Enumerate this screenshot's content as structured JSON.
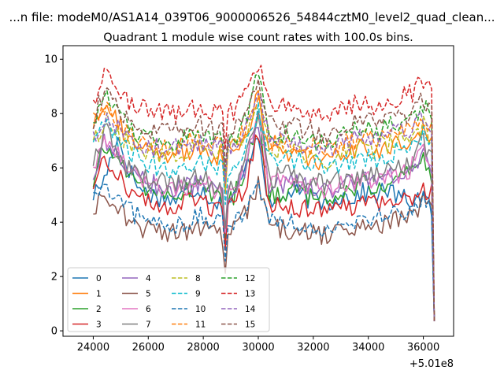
{
  "suptitle": "...n file: modeM0/AS1A14_039T06_9000006526_54844cztM0_level2_quad_clean...",
  "chart_data": {
    "type": "line",
    "title": "Quadrant 1 module wise count rates with 100.0s bins.",
    "xlabel": "",
    "ylabel": "",
    "x_offset_label": "+5.01e8",
    "xlim": [
      22900,
      37100
    ],
    "ylim": [
      -0.2,
      10.5
    ],
    "x_ticks": [
      24000,
      26000,
      28000,
      30000,
      32000,
      34000,
      36000
    ],
    "y_ticks": [
      0,
      2,
      4,
      6,
      8,
      10
    ],
    "x_ticks_labels": [
      "24000",
      "26000",
      "28000",
      "30000",
      "32000",
      "34000",
      "36000"
    ],
    "y_ticks_labels": [
      "0",
      "2",
      "4",
      "6",
      "8",
      "10"
    ],
    "grid": false,
    "legend_position": "lower-left",
    "legend_columns": 4,
    "series": [
      {
        "name": "0",
        "color": "#1f77b4",
        "dash": "solid",
        "values": [
          5.0,
          5.6,
          7.2,
          6.0,
          5.2,
          5.0,
          4.9,
          4.8,
          5.1,
          5.3,
          4.9,
          4.6,
          4.9,
          6.0,
          7.4,
          4.5,
          4.9,
          5.1,
          4.9,
          4.8,
          4.7,
          5.0,
          4.9,
          5.1,
          5.0,
          5.2,
          4.9,
          4.8,
          5.0,
          4.2
        ]
      },
      {
        "name": "1",
        "color": "#ff7f0e",
        "dash": "solid",
        "values": [
          7.6,
          8.6,
          7.8,
          7.0,
          6.7,
          6.5,
          6.4,
          6.6,
          6.5,
          6.7,
          6.4,
          6.5,
          6.7,
          7.3,
          8.6,
          6.6,
          6.6,
          6.5,
          6.4,
          6.3,
          6.2,
          6.5,
          6.6,
          6.7,
          6.6,
          6.8,
          6.9,
          7.0,
          7.4,
          6.8
        ]
      },
      {
        "name": "2",
        "color": "#2ca02c",
        "dash": "solid",
        "values": [
          5.4,
          6.8,
          6.4,
          5.8,
          5.4,
          5.2,
          5.1,
          5.0,
          5.2,
          5.5,
          5.1,
          4.7,
          5.0,
          5.9,
          7.9,
          5.0,
          5.1,
          5.2,
          5.0,
          4.8,
          4.9,
          5.1,
          5.2,
          5.4,
          5.3,
          5.5,
          5.6,
          5.8,
          6.4,
          5.4
        ]
      },
      {
        "name": "3",
        "color": "#d62728",
        "dash": "solid",
        "values": [
          5.3,
          6.4,
          5.9,
          5.2,
          4.9,
          4.7,
          4.6,
          4.5,
          4.7,
          4.9,
          4.6,
          4.4,
          4.6,
          5.4,
          7.2,
          4.6,
          4.7,
          4.6,
          4.5,
          4.4,
          4.3,
          4.5,
          4.6,
          4.7,
          4.6,
          4.8,
          4.7,
          4.9,
          5.2,
          5.2
        ]
      },
      {
        "name": "4",
        "color": "#9467bd",
        "dash": "solid",
        "values": [
          5.6,
          7.0,
          6.5,
          6.0,
          5.6,
          5.4,
          5.3,
          5.2,
          5.3,
          5.5,
          5.2,
          5.0,
          5.2,
          6.1,
          7.8,
          5.3,
          5.4,
          5.5,
          5.3,
          5.2,
          5.1,
          5.3,
          5.4,
          5.6,
          5.5,
          5.7,
          5.8,
          5.9,
          6.5,
          5.8
        ]
      },
      {
        "name": "5",
        "color": "#8c564b",
        "dash": "solid",
        "values": [
          4.3,
          5.2,
          4.6,
          4.1,
          3.8,
          3.7,
          3.6,
          3.6,
          3.7,
          3.9,
          3.6,
          3.5,
          3.7,
          4.4,
          5.4,
          3.8,
          3.8,
          3.7,
          3.6,
          3.5,
          3.5,
          3.7,
          3.8,
          3.9,
          3.8,
          4.0,
          4.1,
          4.2,
          4.8,
          4.3
        ]
      },
      {
        "name": "6",
        "color": "#e377c2",
        "dash": "solid",
        "values": [
          6.0,
          7.2,
          6.7,
          6.1,
          5.6,
          5.4,
          5.3,
          5.2,
          5.3,
          5.6,
          5.3,
          5.0,
          5.2,
          6.2,
          8.0,
          5.4,
          5.5,
          5.6,
          5.4,
          5.3,
          5.2,
          5.4,
          5.5,
          5.6,
          5.5,
          5.7,
          5.8,
          6.0,
          6.6,
          6.1
        ]
      },
      {
        "name": "7",
        "color": "#7f7f7f",
        "dash": "solid",
        "values": [
          6.0,
          7.4,
          6.6,
          6.0,
          5.7,
          5.6,
          5.5,
          5.4,
          5.5,
          5.7,
          5.4,
          5.1,
          5.4,
          6.3,
          8.2,
          5.6,
          5.7,
          5.8,
          5.6,
          5.5,
          5.4,
          5.6,
          5.7,
          5.8,
          5.7,
          5.9,
          6.0,
          6.2,
          7.0,
          6.2
        ]
      },
      {
        "name": "8",
        "color": "#bcbd22",
        "dash": "dashed",
        "values": [
          6.9,
          7.8,
          7.3,
          6.9,
          6.7,
          6.6,
          6.5,
          6.5,
          6.6,
          6.8,
          6.6,
          6.5,
          6.6,
          7.2,
          8.4,
          6.7,
          6.7,
          6.6,
          6.5,
          6.4,
          6.3,
          6.6,
          6.7,
          6.8,
          6.7,
          6.9,
          7.0,
          7.1,
          7.6,
          7.0
        ]
      },
      {
        "name": "9",
        "color": "#17becf",
        "dash": "dashed",
        "values": [
          6.8,
          7.6,
          7.0,
          6.6,
          6.3,
          6.1,
          6.0,
          6.0,
          6.1,
          6.3,
          6.1,
          6.0,
          6.1,
          6.8,
          8.1,
          6.4,
          6.4,
          6.3,
          6.2,
          6.1,
          6.0,
          6.2,
          6.3,
          6.4,
          6.3,
          6.5,
          6.6,
          6.7,
          7.2,
          6.7
        ]
      },
      {
        "name": "10",
        "color": "#1f77b4",
        "dash": "dashed",
        "values": [
          4.9,
          5.2,
          4.8,
          4.4,
          4.2,
          4.0,
          3.9,
          3.9,
          4.0,
          4.2,
          4.0,
          3.9,
          4.0,
          4.6,
          5.4,
          4.1,
          4.1,
          4.0,
          3.9,
          3.8,
          3.8,
          4.0,
          4.1,
          4.2,
          4.1,
          4.3,
          4.4,
          4.5,
          4.8,
          4.4
        ]
      },
      {
        "name": "11",
        "color": "#ff7f0e",
        "dash": "dashed",
        "values": [
          7.8,
          8.3,
          7.7,
          7.2,
          7.0,
          6.9,
          6.8,
          6.8,
          6.9,
          7.1,
          6.9,
          6.8,
          6.9,
          7.5,
          8.7,
          7.0,
          7.0,
          6.9,
          6.8,
          6.7,
          6.6,
          6.9,
          7.0,
          7.1,
          7.0,
          7.2,
          7.3,
          7.4,
          8.0,
          7.3
        ]
      },
      {
        "name": "12",
        "color": "#2ca02c",
        "dash": "dashed",
        "values": [
          7.4,
          8.8,
          8.0,
          7.5,
          7.2,
          7.1,
          7.0,
          7.0,
          7.1,
          7.3,
          7.1,
          7.0,
          7.1,
          7.8,
          9.7,
          7.3,
          7.3,
          7.2,
          7.1,
          7.0,
          6.9,
          7.2,
          7.3,
          7.4,
          7.3,
          7.5,
          7.6,
          7.7,
          8.4,
          7.8
        ]
      },
      {
        "name": "13",
        "color": "#d62728",
        "dash": "dashed",
        "values": [
          8.2,
          9.6,
          8.9,
          8.5,
          8.2,
          8.1,
          8.0,
          8.0,
          8.1,
          8.3,
          8.1,
          8.0,
          8.1,
          8.8,
          10.0,
          8.3,
          8.3,
          8.2,
          8.1,
          8.0,
          7.9,
          8.2,
          8.3,
          8.4,
          8.3,
          8.5,
          8.6,
          8.7,
          9.3,
          8.5
        ]
      },
      {
        "name": "14",
        "color": "#9467bd",
        "dash": "dashed",
        "values": [
          7.0,
          8.0,
          7.5,
          7.1,
          6.9,
          6.8,
          6.7,
          6.7,
          6.8,
          7.0,
          6.8,
          6.7,
          6.8,
          7.4,
          8.6,
          7.0,
          7.0,
          6.9,
          6.8,
          6.7,
          6.6,
          6.9,
          7.0,
          7.1,
          7.0,
          7.2,
          7.3,
          7.4,
          8.0,
          7.2
        ]
      },
      {
        "name": "15",
        "color": "#8c564b",
        "dash": "dashed",
        "values": [
          7.8,
          9.0,
          8.3,
          7.8,
          7.5,
          7.4,
          7.3,
          7.3,
          7.4,
          7.6,
          7.4,
          7.3,
          7.4,
          8.1,
          9.3,
          7.6,
          7.6,
          7.5,
          7.4,
          7.3,
          7.2,
          7.5,
          7.6,
          7.7,
          7.6,
          7.8,
          7.9,
          8.0,
          8.6,
          7.9
        ]
      }
    ],
    "x_start": 24000,
    "x_end": 36400,
    "drop_to": 0.35
  }
}
